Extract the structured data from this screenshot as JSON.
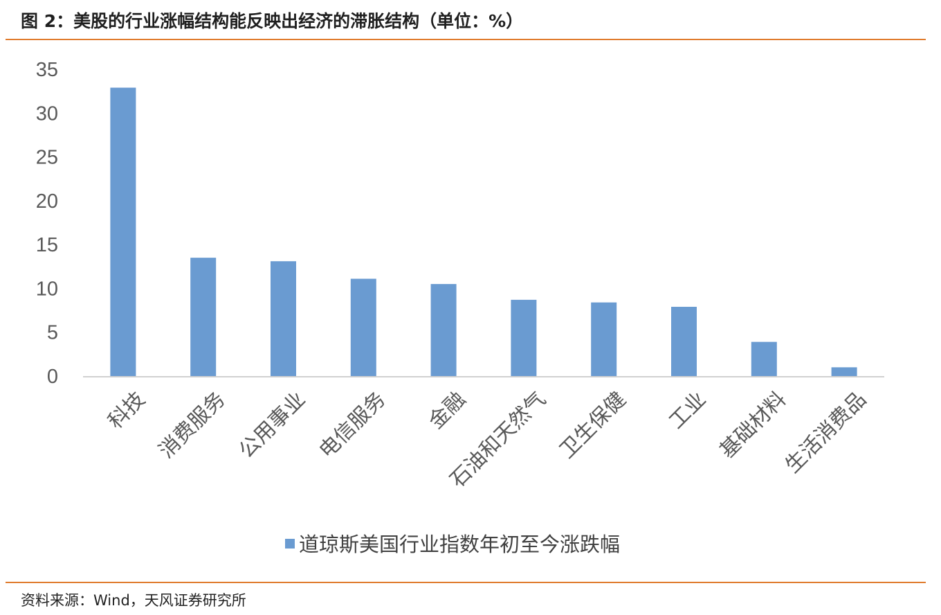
{
  "figure": {
    "title": "图 2：美股的行业涨幅结构能反映出经济的滞胀结构（单位：%）",
    "source": "资料来源：Wind，天风证券研究所",
    "accent_color": "#e07b2d"
  },
  "chart_data": {
    "type": "bar",
    "categories": [
      "科技",
      "消费服务",
      "公用事业",
      "电信服务",
      "金融",
      "石油和天然气",
      "卫生保健",
      "工业",
      "基础材料",
      "生活消费品"
    ],
    "series": [
      {
        "name": "道琼斯美国行业指数年初至今涨跌幅",
        "values": [
          32.9,
          13.5,
          13.1,
          11.1,
          10.5,
          8.7,
          8.4,
          7.9,
          3.9,
          1.0
        ],
        "color": "#6a9bd1"
      }
    ],
    "ylim": [
      0,
      35
    ],
    "yticks": [
      "0",
      "5",
      "10",
      "15",
      "20",
      "25",
      "30",
      "35"
    ],
    "grid": false,
    "legend_position": "bottom"
  }
}
